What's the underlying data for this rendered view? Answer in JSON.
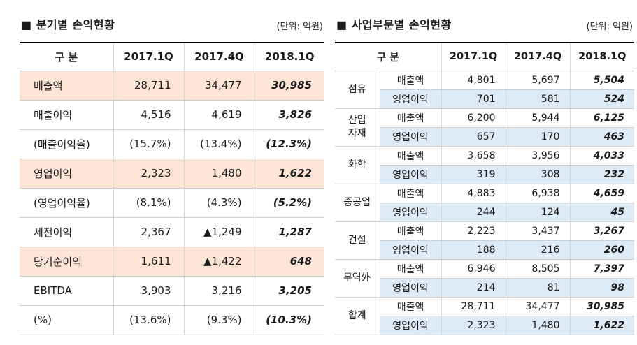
{
  "quarterly": {
    "title": "■ 분기별 손익현황",
    "unit_label": "(단위: 억원)",
    "columns": [
      "구 분",
      "2017.1Q",
      "2017.4Q",
      "2018.1Q"
    ],
    "highlight_color": "#FCE4D6",
    "rows": [
      {
        "label": "매출액",
        "values": [
          "28,711",
          "34,477",
          "30,985"
        ],
        "highlight": true
      },
      {
        "label": "매출이익",
        "values": [
          "4,516",
          "4,619",
          "3,826"
        ],
        "highlight": false
      },
      {
        "label": "(매출이익율)",
        "values": [
          "(15.7%)",
          "(13.4%)",
          "(12.3%)"
        ],
        "highlight": false
      },
      {
        "label": "영업이익",
        "values": [
          "2,323",
          "1,480",
          "1,622"
        ],
        "highlight": true
      },
      {
        "label": "(영업이익율)",
        "values": [
          "(8.1%)",
          "(4.3%)",
          "(5.2%)"
        ],
        "highlight": false
      },
      {
        "label": "세전이익",
        "values": [
          "2,367",
          "▲1,249",
          "1,287"
        ],
        "highlight": false
      },
      {
        "label": "당기순이익",
        "values": [
          "1,611",
          "▲1,422",
          "648"
        ],
        "highlight": true
      },
      {
        "label": "EBITDA",
        "values": [
          "3,903",
          "3,216",
          "3,205"
        ],
        "highlight": false
      },
      {
        "label": "(%)",
        "values": [
          "(13.6%)",
          "(9.3%)",
          "(10.3%)"
        ],
        "highlight": false
      }
    ]
  },
  "segments_table": {
    "title": "■ 사업부문별 손익현황",
    "unit_label": "(단위: 억원)",
    "columns": [
      "구 분",
      "2017.1Q",
      "2017.4Q",
      "2018.1Q"
    ],
    "highlight_color": "#DDEBF7",
    "segments": [
      {
        "name": "섬유",
        "rows": [
          {
            "label": "매출액",
            "values": [
              "4,801",
              "5,697",
              "5,504"
            ],
            "highlight": false
          },
          {
            "label": "영업이익",
            "values": [
              "701",
              "581",
              "524"
            ],
            "highlight": true
          }
        ]
      },
      {
        "name": "산업\n자재",
        "rows": [
          {
            "label": "매출액",
            "values": [
              "6,200",
              "5,944",
              "6,125"
            ],
            "highlight": false
          },
          {
            "label": "영업이익",
            "values": [
              "657",
              "170",
              "463"
            ],
            "highlight": true
          }
        ]
      },
      {
        "name": "화학",
        "rows": [
          {
            "label": "매출액",
            "values": [
              "3,658",
              "3,956",
              "4,033"
            ],
            "highlight": false
          },
          {
            "label": "영업이익",
            "values": [
              "319",
              "308",
              "232"
            ],
            "highlight": true
          }
        ]
      },
      {
        "name": "중공업",
        "rows": [
          {
            "label": "매출액",
            "values": [
              "4,883",
              "6,938",
              "4,659"
            ],
            "highlight": false
          },
          {
            "label": "영업이익",
            "values": [
              "244",
              "124",
              "45"
            ],
            "highlight": true
          }
        ]
      },
      {
        "name": "건설",
        "rows": [
          {
            "label": "매출액",
            "values": [
              "2,223",
              "3,437",
              "3,267"
            ],
            "highlight": false
          },
          {
            "label": "영업이익",
            "values": [
              "188",
              "216",
              "260"
            ],
            "highlight": true
          }
        ]
      },
      {
        "name": "무역外",
        "rows": [
          {
            "label": "매출액",
            "values": [
              "6,946",
              "8,505",
              "7,397"
            ],
            "highlight": false
          },
          {
            "label": "영업이익",
            "values": [
              "214",
              "81",
              "98"
            ],
            "highlight": true
          }
        ]
      },
      {
        "name": "합계",
        "rows": [
          {
            "label": "매출액",
            "values": [
              "28,711",
              "34,477",
              "30,985"
            ],
            "highlight": false
          },
          {
            "label": "영업이익",
            "values": [
              "2,323",
              "1,480",
              "1,622"
            ],
            "highlight": true
          }
        ]
      }
    ]
  }
}
